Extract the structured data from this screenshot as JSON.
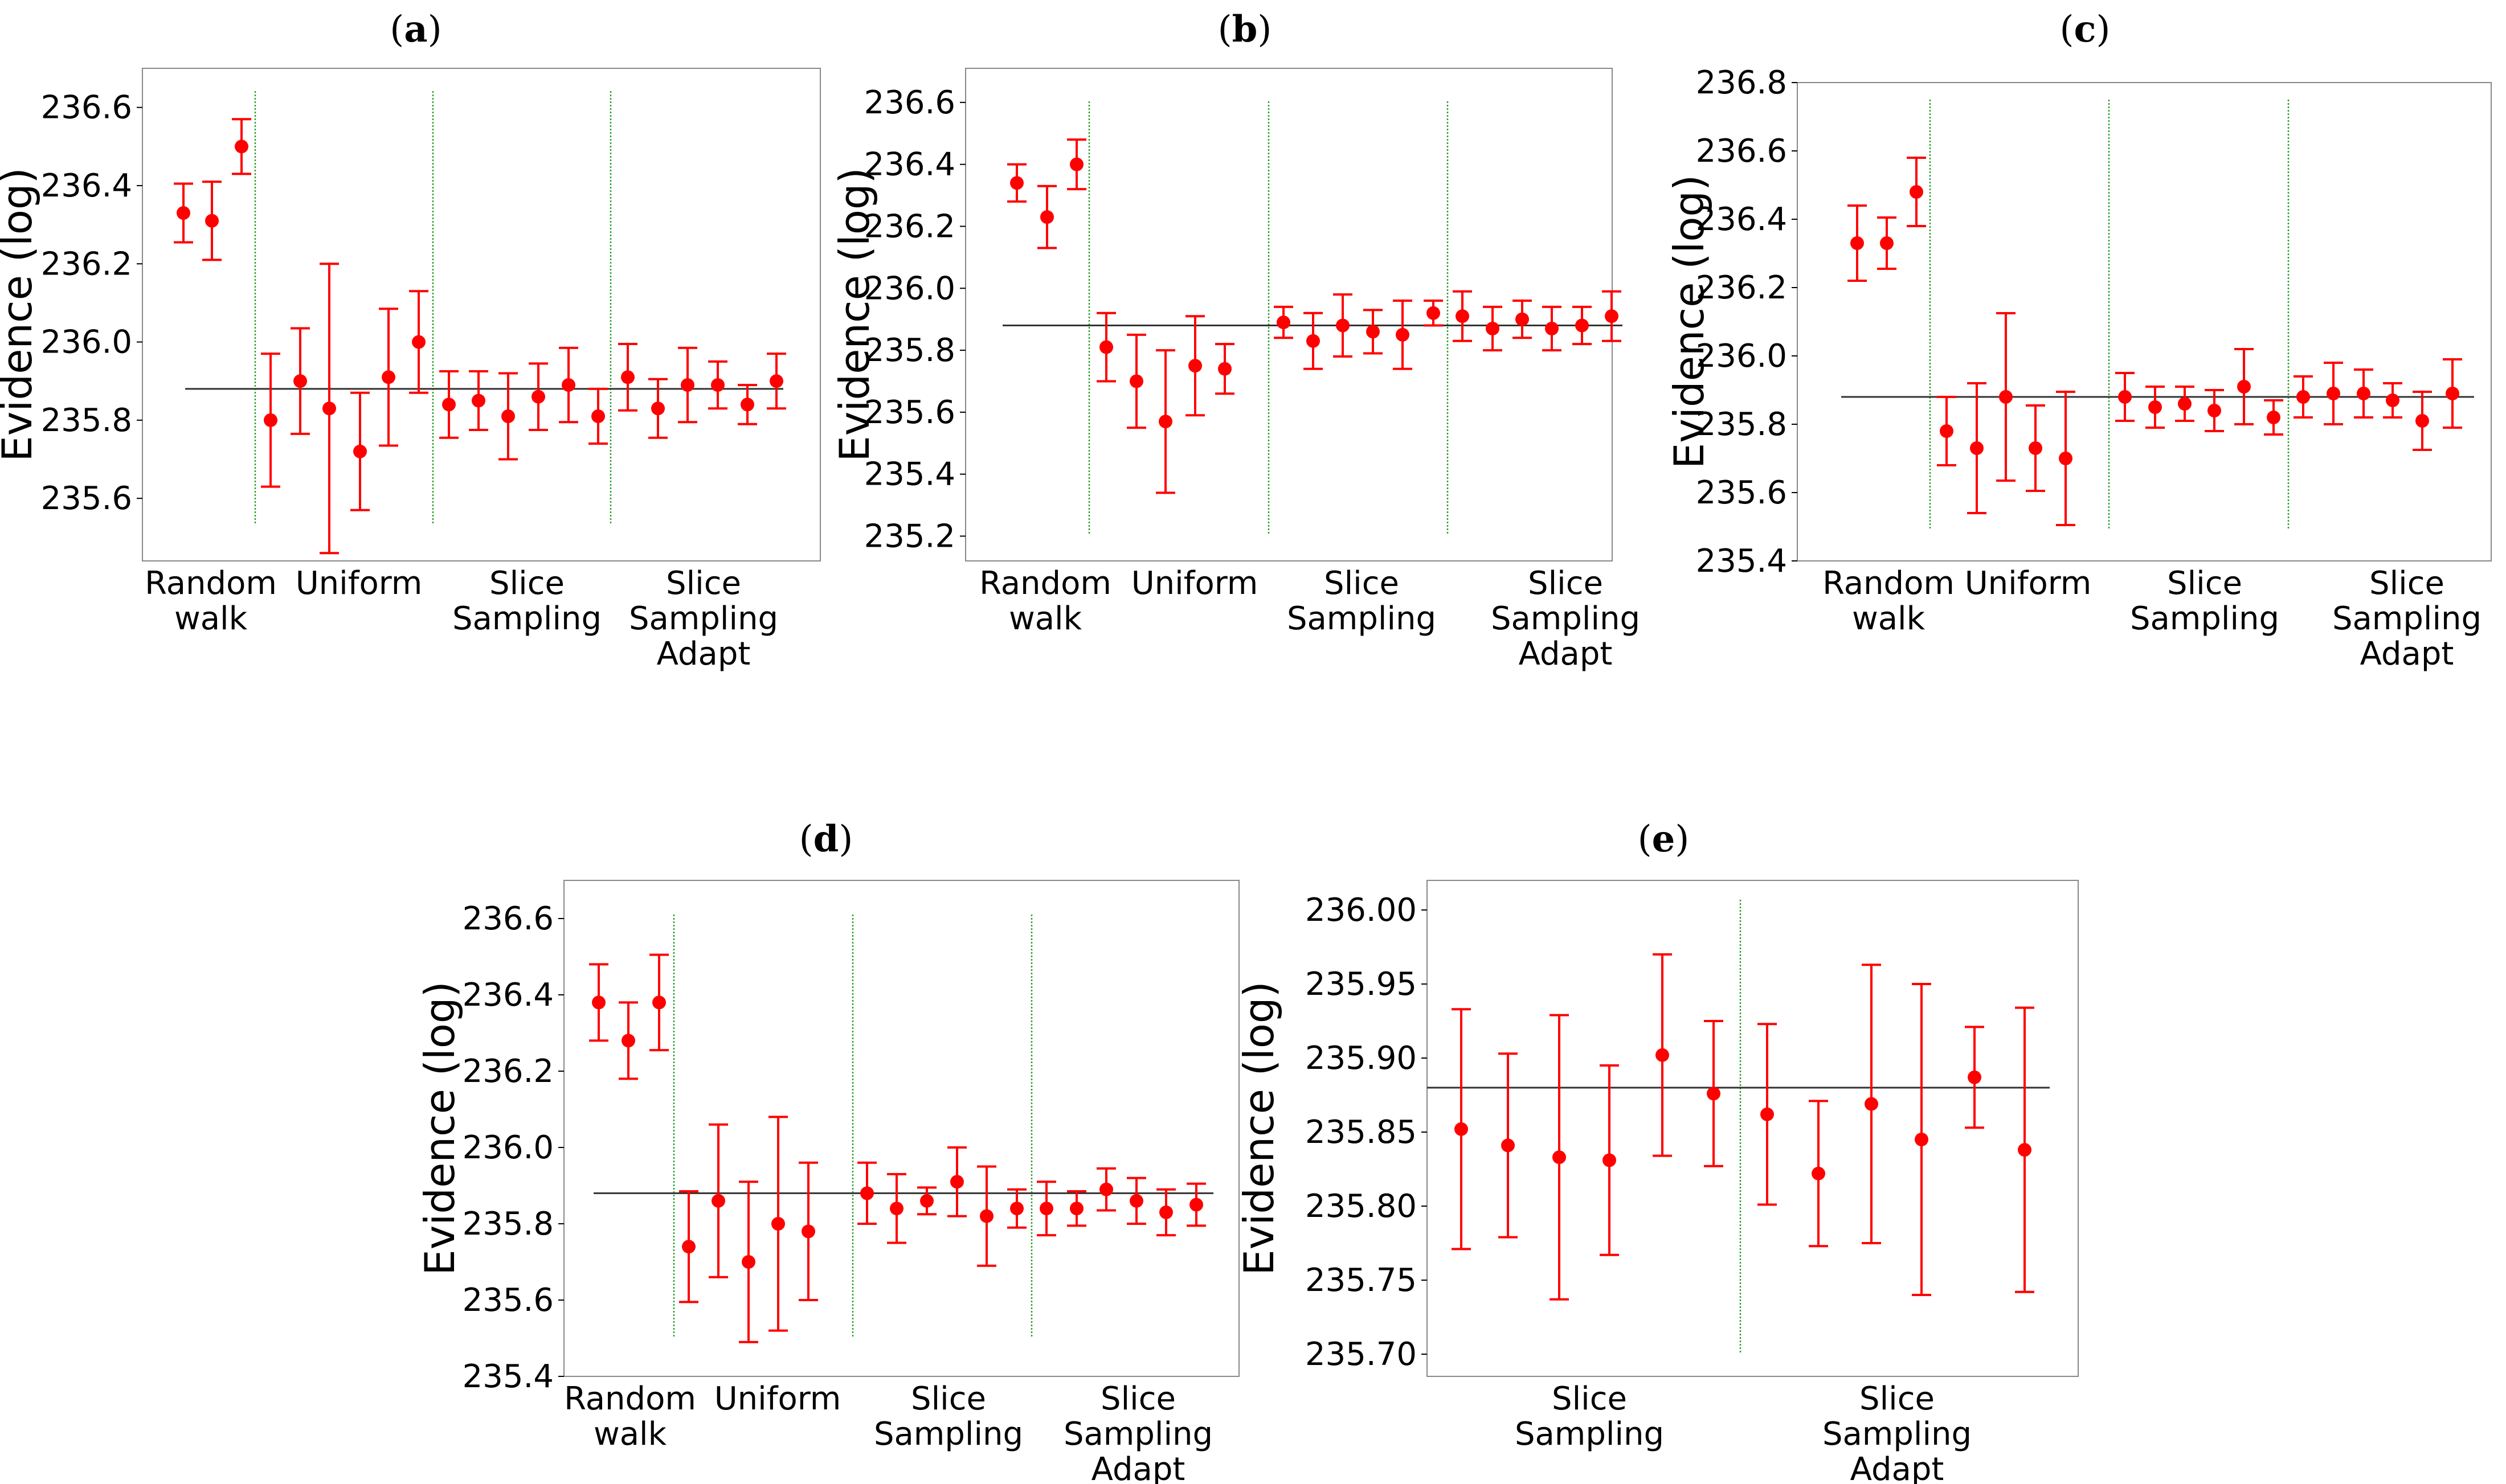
{
  "chart_data": [
    {
      "panel": "a",
      "type": "scatter",
      "ylabel": "Evidence (log)",
      "ylim": [
        235.44,
        236.7
      ],
      "yticks": [
        235.6,
        235.8,
        236.0,
        236.2,
        236.4,
        236.6
      ],
      "ytick_labels": [
        "235.6",
        "235.8",
        "236.0",
        "236.2",
        "236.4",
        "236.6"
      ],
      "reference_line": 235.88,
      "groups": [
        {
          "label_lines": [
            "Random",
            "walk"
          ],
          "means": [
            236.33,
            236.31,
            236.5
          ],
          "errors": [
            0.075,
            0.1,
            0.07
          ]
        },
        {
          "label_lines": [
            "Uniform"
          ],
          "means": [
            235.8,
            235.9,
            235.83,
            235.72,
            235.91,
            236.0
          ],
          "errors": [
            0.17,
            0.135,
            0.37,
            0.15,
            0.175,
            0.13
          ]
        },
        {
          "label_lines": [
            "Slice",
            "Sampling"
          ],
          "means": [
            235.84,
            235.85,
            235.81,
            235.86,
            235.89,
            235.81
          ],
          "errors": [
            0.085,
            0.075,
            0.11,
            0.085,
            0.095,
            0.07
          ]
        },
        {
          "label_lines": [
            "Slice",
            "Sampling",
            "Adapt"
          ],
          "means": [
            235.91,
            235.83,
            235.89,
            235.89,
            235.84,
            235.9
          ],
          "errors": [
            0.085,
            0.075,
            0.095,
            0.06,
            0.05,
            0.07
          ]
        }
      ]
    },
    {
      "panel": "b",
      "type": "scatter",
      "ylabel": "Evidence (log)",
      "ylim": [
        235.12,
        236.71
      ],
      "yticks": [
        235.2,
        235.4,
        235.6,
        235.8,
        236.0,
        236.2,
        236.4,
        236.6
      ],
      "ytick_labels": [
        "235.2",
        "235.4",
        "235.6",
        "235.8",
        "236.0",
        "236.2",
        "236.4",
        "236.6"
      ],
      "reference_line": 235.88,
      "groups": [
        {
          "label_lines": [
            "Random",
            "walk"
          ],
          "means": [
            236.34,
            236.23,
            236.4
          ],
          "errors": [
            0.06,
            0.1,
            0.08
          ]
        },
        {
          "label_lines": [
            "Uniform"
          ],
          "means": [
            235.81,
            235.7,
            235.57,
            235.75,
            235.74
          ],
          "errors": [
            0.11,
            0.15,
            0.23,
            0.16,
            0.08
          ]
        },
        {
          "label_lines": [
            "Slice",
            "Sampling"
          ],
          "means": [
            235.89,
            235.83,
            235.88,
            235.86,
            235.85,
            235.92
          ],
          "errors": [
            0.05,
            0.09,
            0.1,
            0.07,
            0.11,
            0.04
          ]
        },
        {
          "label_lines": [
            "Slice",
            "Sampling",
            "Adapt"
          ],
          "means": [
            235.91,
            235.87,
            235.9,
            235.87,
            235.88,
            235.91
          ],
          "errors": [
            0.08,
            0.07,
            0.06,
            0.07,
            0.06,
            0.08
          ]
        }
      ]
    },
    {
      "panel": "c",
      "type": "scatter",
      "ylabel": "Evidence (log)",
      "ylim": [
        235.4,
        236.8
      ],
      "yticks": [
        235.4,
        235.6,
        235.8,
        236.0,
        236.2,
        236.4,
        236.6,
        236.8
      ],
      "ytick_labels": [
        "235.4",
        "235.6",
        "235.8",
        "236.0",
        "236.2",
        "236.4",
        "236.6",
        "236.8"
      ],
      "reference_line": 235.88,
      "groups": [
        {
          "label_lines": [
            "Random",
            "walk"
          ],
          "means": [
            236.33,
            236.33,
            236.48
          ],
          "errors": [
            0.11,
            0.075,
            0.1
          ]
        },
        {
          "label_lines": [
            "Uniform"
          ],
          "means": [
            235.78,
            235.73,
            235.88,
            235.73,
            235.7
          ],
          "errors": [
            0.1,
            0.19,
            0.245,
            0.125,
            0.195
          ]
        },
        {
          "label_lines": [
            "Slice",
            "Sampling"
          ],
          "means": [
            235.88,
            235.85,
            235.86,
            235.84,
            235.91,
            235.82
          ],
          "errors": [
            0.07,
            0.06,
            0.05,
            0.06,
            0.11,
            0.05
          ]
        },
        {
          "label_lines": [
            "Slice",
            "Sampling",
            "Adapt"
          ],
          "means": [
            235.88,
            235.89,
            235.89,
            235.87,
            235.81,
            235.89
          ],
          "errors": [
            0.06,
            0.09,
            0.07,
            0.05,
            0.085,
            0.1
          ]
        }
      ]
    },
    {
      "panel": "d",
      "type": "scatter",
      "ylabel": "Evidence (log)",
      "ylim": [
        235.4,
        236.7
      ],
      "yticks": [
        235.4,
        235.6,
        235.8,
        236.0,
        236.2,
        236.4,
        236.6
      ],
      "ytick_labels": [
        "235.4",
        "235.6",
        "235.8",
        "236.0",
        "236.2",
        "236.4",
        "236.6"
      ],
      "reference_line": 235.88,
      "groups": [
        {
          "label_lines": [
            "Random",
            "walk"
          ],
          "means": [
            236.38,
            236.28,
            236.38
          ],
          "errors": [
            0.1,
            0.1,
            0.125
          ]
        },
        {
          "label_lines": [
            "Uniform"
          ],
          "means": [
            235.74,
            235.86,
            235.7,
            235.8,
            235.78
          ],
          "errors": [
            0.145,
            0.2,
            0.21,
            0.28,
            0.18
          ]
        },
        {
          "label_lines": [
            "Slice",
            "Sampling"
          ],
          "means": [
            235.88,
            235.84,
            235.86,
            235.91,
            235.82,
            235.84
          ],
          "errors": [
            0.08,
            0.09,
            0.035,
            0.09,
            0.13,
            0.05
          ]
        },
        {
          "label_lines": [
            "Slice",
            "Sampling",
            "Adapt"
          ],
          "means": [
            235.84,
            235.84,
            235.89,
            235.86,
            235.83,
            235.85
          ],
          "errors": [
            0.07,
            0.045,
            0.055,
            0.06,
            0.06,
            0.055
          ]
        }
      ]
    },
    {
      "panel": "e",
      "type": "scatter",
      "ylabel": "Evidence (log)",
      "ylim": [
        235.685,
        236.02
      ],
      "yticks": [
        235.7,
        235.75,
        235.8,
        235.85,
        235.9,
        235.95,
        236.0
      ],
      "ytick_labels": [
        "235.70",
        "235.75",
        "235.80",
        "235.85",
        "235.90",
        "235.95",
        "236.00"
      ],
      "reference_line": 235.88,
      "groups": [
        {
          "label_lines": [
            "Slice",
            "Sampling"
          ],
          "means": [
            235.852,
            235.841,
            235.833,
            235.831,
            235.902,
            235.876
          ],
          "errors": [
            0.081,
            0.062,
            0.096,
            0.064,
            0.068,
            0.049
          ]
        },
        {
          "label_lines": [
            "Slice",
            "Sampling",
            "Adapt"
          ],
          "means": [
            235.862,
            235.822,
            235.869,
            235.845,
            235.887,
            235.838
          ],
          "errors": [
            0.061,
            0.049,
            0.094,
            0.105,
            0.034,
            0.096
          ]
        }
      ]
    }
  ],
  "colors": {
    "marker": "#ff0000",
    "reference_line": "#333333",
    "separator": "#2ca02c",
    "frame": "#888888"
  }
}
